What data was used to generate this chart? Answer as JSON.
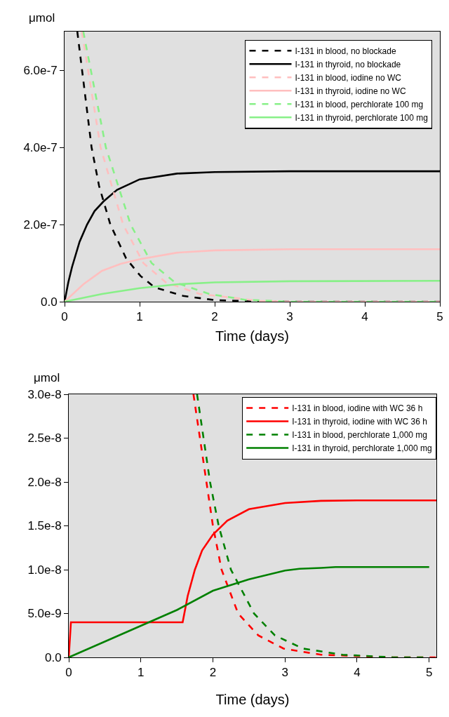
{
  "chart_data": [
    {
      "type": "line",
      "xlabel": "Time (days)",
      "ylabel": "μmol",
      "xlim": [
        0,
        5
      ],
      "ylim": [
        0,
        7e-07
      ],
      "xticks": [
        0,
        1,
        2,
        3,
        4,
        5
      ],
      "yticks": [
        {
          "value": 0,
          "label": "0.0"
        },
        {
          "value": 2e-07,
          "label": "2.0e-7"
        },
        {
          "value": 4e-07,
          "label": "4.0e-7"
        },
        {
          "value": 6e-07,
          "label": "6.0e-7"
        }
      ],
      "grid": false,
      "legend": "top right",
      "series": [
        {
          "name": "I-131 in blood, no blockade",
          "color": "#000000",
          "line_style": "dashed",
          "x": [
            0.17,
            0.36,
            0.46,
            0.61,
            0.82,
            1.01,
            1.2,
            1.58,
            2.0,
            2.5,
            3,
            4,
            5
          ],
          "values": [
            7e-07,
            4e-07,
            3e-07,
            2e-07,
            1.12e-07,
            6.7e-08,
            3.7e-08,
            1.5e-08,
            4e-09,
            1e-09,
            0,
            0,
            0
          ]
        },
        {
          "name": "I-131 in thyroid, no blockade",
          "color": "#000000",
          "line_style": "solid",
          "x": [
            0,
            0.05,
            0.1,
            0.2,
            0.3,
            0.4,
            0.52,
            0.7,
            1,
            1.5,
            2,
            3,
            5
          ],
          "values": [
            0,
            5e-08,
            9e-08,
            1.55e-07,
            2e-07,
            2.35e-07,
            2.6e-07,
            2.9e-07,
            3.17e-07,
            3.32e-07,
            3.36e-07,
            3.38e-07,
            3.38e-07
          ]
        },
        {
          "name": "I-131 in blood, iodine no WC",
          "color": "#ffbfbf",
          "line_style": "dashed",
          "x": [
            0.23,
            0.48,
            0.78,
            1.05,
            1.35,
            1.8,
            2.6,
            3,
            4,
            5
          ],
          "values": [
            7e-07,
            4e-07,
            2e-07,
            1e-07,
            5e-08,
            2e-08,
            2e-09,
            0,
            0,
            0
          ]
        },
        {
          "name": "I-131 in thyroid, iodine no WC",
          "color": "#ffbfbf",
          "line_style": "solid",
          "x": [
            0,
            0.25,
            0.5,
            0.75,
            1,
            1.5,
            2,
            3,
            5
          ],
          "values": [
            0,
            4.5e-08,
            8e-08,
            9.8e-08,
            1.1e-07,
            1.27e-07,
            1.33e-07,
            1.36e-07,
            1.36e-07
          ]
        },
        {
          "name": "I-131 in blood, perchlorate 100 mg",
          "color": "#88f088",
          "line_style": "dashed",
          "x": [
            0.25,
            0.55,
            0.88,
            1.16,
            1.47,
            1.93,
            2.4,
            3,
            4,
            5
          ],
          "values": [
            7e-07,
            4e-07,
            2e-07,
            1e-07,
            5e-08,
            2e-08,
            5e-09,
            0,
            0,
            0
          ]
        },
        {
          "name": "I-131 in thyroid, perchlorate 100 mg",
          "color": "#88f088",
          "line_style": "solid",
          "x": [
            0,
            0.5,
            1,
            1.5,
            2,
            3,
            5
          ],
          "values": [
            0,
            2e-08,
            3.5e-08,
            4.5e-08,
            5e-08,
            5.3e-08,
            5.4e-08
          ]
        }
      ]
    },
    {
      "type": "line",
      "xlabel": "Time (days)",
      "ylabel": "μmol",
      "xlim": [
        0,
        5.1
      ],
      "ylim": [
        0,
        3e-08
      ],
      "xticks": [
        0,
        1,
        2,
        3,
        4,
        5
      ],
      "yticks": [
        {
          "value": 0,
          "label": "0.0"
        },
        {
          "value": 5e-09,
          "label": "5.0e-9"
        },
        {
          "value": 1e-08,
          "label": "1.0e-8"
        },
        {
          "value": 1.5e-08,
          "label": "1.5e-8"
        },
        {
          "value": 2e-08,
          "label": "2.0e-8"
        },
        {
          "value": 2.5e-08,
          "label": "2.5e-8"
        },
        {
          "value": 3e-08,
          "label": "3.0e-8"
        }
      ],
      "grid": false,
      "legend": "top right",
      "series": [
        {
          "name": "I-131 in blood, iodine with WC 36 h",
          "color": "#ff0000",
          "line_style": "dashed",
          "x": [
            1.73,
            1.91,
            2.0,
            2.12,
            2.35,
            2.63,
            2.98,
            3.5,
            4.5,
            5.1
          ],
          "values": [
            3e-08,
            2e-08,
            1.5e-08,
            1e-08,
            5e-09,
            2.5e-09,
            1e-09,
            3e-10,
            0,
            0
          ]
        },
        {
          "name": "I-131 in thyroid, iodine with WC 36 h",
          "color": "#ff0000",
          "line_style": "solid",
          "x": [
            0,
            0.03,
            1.55,
            1.58,
            1.65,
            1.75,
            1.85,
            2,
            2.2,
            2.5,
            3,
            3.5,
            4,
            5.1
          ],
          "values": [
            0,
            4e-09,
            4e-09,
            4e-09,
            7e-09,
            1e-08,
            1.22e-08,
            1.4e-08,
            1.56e-08,
            1.69e-08,
            1.76e-08,
            1.785e-08,
            1.79e-08,
            1.79e-08
          ]
        },
        {
          "name": "I-131 in blood, perchlorate 1,000 mg",
          "color": "#008000",
          "line_style": "dashed",
          "x": [
            1.78,
            1.96,
            2.08,
            2.25,
            2.57,
            2.86,
            3.25,
            3.8,
            4.5,
            5.0
          ],
          "values": [
            3e-08,
            2e-08,
            1.5e-08,
            1e-08,
            5e-09,
            2.5e-09,
            1e-09,
            3e-10,
            0,
            0
          ]
        },
        {
          "name": "I-131 in thyroid, perchlorate 1,000 mg",
          "color": "#008000",
          "line_style": "solid",
          "x": [
            0,
            0.5,
            1,
            1.5,
            2,
            2.5,
            3,
            3.2,
            3.5,
            3.7,
            5
          ],
          "values": [
            0,
            1.8e-09,
            3.6e-09,
            5.4e-09,
            7.6e-09,
            8.9e-09,
            9.9e-09,
            1.01e-08,
            1.02e-08,
            1.03e-08,
            1.03e-08
          ]
        }
      ]
    }
  ]
}
